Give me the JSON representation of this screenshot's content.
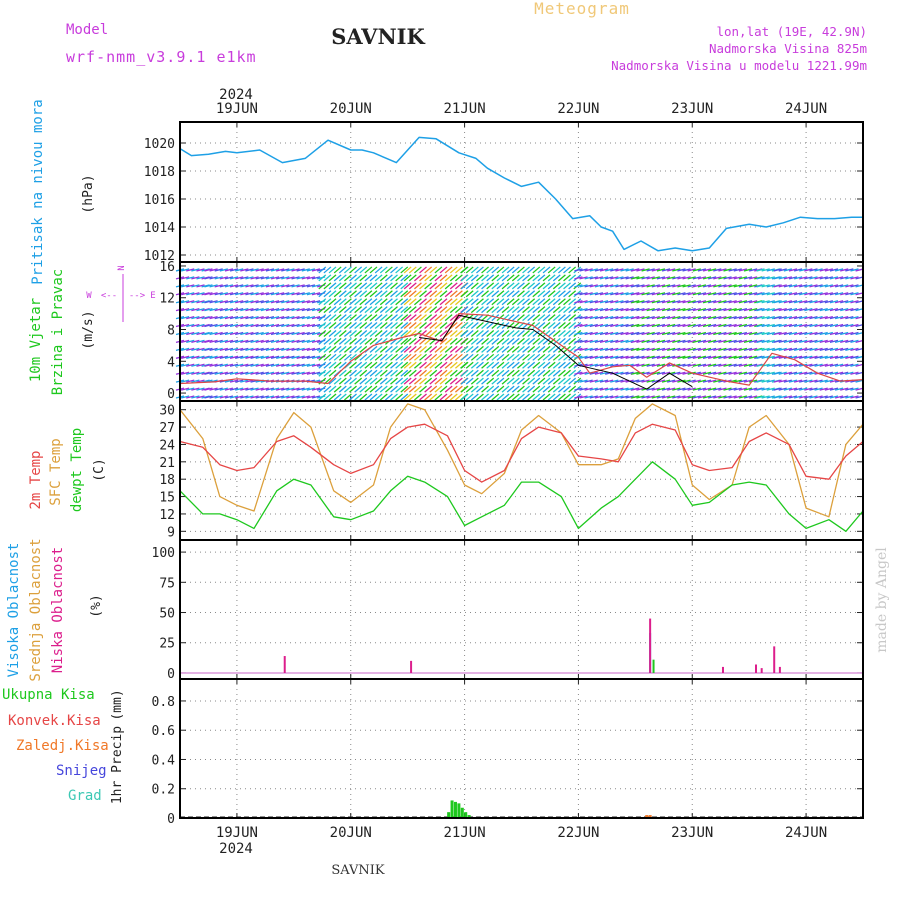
{
  "header": {
    "station_title": "SAVNIK",
    "product_title": "Meteogram",
    "model_label": "Model",
    "model_name": "wrf-nmm_v3.9.1 e1km",
    "location": "lon,lat (19E, 42.9N)",
    "elevation": "Nadmorska Visina 825m",
    "model_elevation": "Nadmorska Visina u modelu 1221.99m",
    "credit": "made by Angel",
    "footer_station": "SAVNIK"
  },
  "time_axis": {
    "year": "2024",
    "day_labels": [
      "19JUN",
      "20JUN",
      "21JUN",
      "22JUN",
      "23JUN",
      "24JUN"
    ],
    "day_values": [
      1,
      2,
      3,
      4,
      5,
      6
    ],
    "range": [
      0.5,
      6.5
    ]
  },
  "colors": {
    "pressure": "#1ea0e6",
    "temp2m": "#e64646",
    "sfc_temp": "#dca03c",
    "dewpoint": "#1ec81e",
    "high_cloud": "#1ea0e6",
    "mid_cloud": "#dca03c",
    "low_cloud": "#dc1e8c",
    "total_precip": "#1ec81e",
    "conv_precip": "#e64646",
    "frozen_precip": "#f07828",
    "snow": "#4646dc",
    "hail": "#3cc8b4",
    "wind_direction_label": "#c83cdc",
    "wind_speed_line": "#dc4646",
    "wind_gust_line": "#000000",
    "credit": "#c8c8c8"
  },
  "chart_data": [
    {
      "type": "line",
      "name": "pressure",
      "ylabel_lines": [
        "Pritisak na nivou mora"
      ],
      "unit": "(hPa)",
      "ylim": [
        1011.5,
        1021.5
      ],
      "yticks": [
        1012,
        1014,
        1016,
        1018,
        1020
      ],
      "x": [
        0.5,
        0.6,
        0.75,
        0.9,
        1.0,
        1.2,
        1.4,
        1.6,
        1.8,
        2.0,
        2.1,
        2.2,
        2.4,
        2.6,
        2.75,
        2.85,
        2.95,
        3.1,
        3.2,
        3.35,
        3.5,
        3.65,
        3.8,
        3.95,
        4.1,
        4.2,
        4.3,
        4.4,
        4.55,
        4.7,
        4.85,
        5.0,
        5.15,
        5.3,
        5.5,
        5.65,
        5.8,
        5.95,
        6.1,
        6.25,
        6.4,
        6.5
      ],
      "y": [
        1019.6,
        1019.1,
        1019.2,
        1019.4,
        1019.3,
        1019.5,
        1018.6,
        1018.9,
        1020.2,
        1019.5,
        1019.5,
        1019.3,
        1018.6,
        1020.4,
        1020.3,
        1019.8,
        1019.3,
        1018.9,
        1018.2,
        1017.5,
        1016.9,
        1017.2,
        1016.0,
        1014.6,
        1014.8,
        1014.0,
        1013.7,
        1012.4,
        1013.0,
        1012.3,
        1012.5,
        1012.3,
        1012.5,
        1013.9,
        1014.2,
        1014.0,
        1014.3,
        1014.7,
        1014.6,
        1014.6,
        1014.7,
        1014.7
      ]
    },
    {
      "type": "line",
      "name": "wind",
      "ylabel_lines": [
        "10m Vjetar",
        "Brzina i Pravac"
      ],
      "unit": "(m/s)",
      "direction_labels": [
        "N",
        "E",
        "W",
        "<--",
        "-->"
      ],
      "ylim": [
        -1,
        16.5
      ],
      "yticks": [
        0,
        4,
        8,
        12,
        16
      ],
      "series": [
        {
          "x": [
            0.5,
            0.8,
            1.0,
            1.3,
            1.6,
            1.8,
            2.0,
            2.2,
            2.45,
            2.6,
            2.8,
            2.95,
            3.2,
            3.45,
            3.6,
            3.8,
            4.0,
            4.1,
            4.3,
            4.45,
            4.6,
            4.8,
            5.0,
            5.3,
            5.5,
            5.7,
            5.9,
            6.1,
            6.3,
            6.5
          ],
          "y": [
            1.2,
            1.4,
            1.8,
            1.5,
            1.5,
            1.2,
            4.0,
            6.0,
            7.0,
            7.5,
            6.5,
            10.0,
            9.8,
            9.0,
            8.5,
            6.5,
            4.5,
            2.5,
            3.3,
            3.5,
            2.0,
            3.8,
            2.5,
            1.5,
            1.0,
            5.0,
            4.2,
            2.5,
            1.5,
            1.7
          ]
        },
        {
          "x": [
            2.6,
            2.8,
            2.95,
            3.2,
            3.45,
            3.6,
            3.8,
            4.0,
            4.3,
            4.6,
            4.8,
            5.0
          ],
          "y": [
            7.0,
            6.6,
            9.8,
            9.0,
            8.2,
            8.0,
            6.0,
            3.5,
            2.5,
            0.5,
            2.5,
            0.8
          ]
        }
      ]
    },
    {
      "type": "line",
      "name": "temperature",
      "ylabel_lines": [
        "2m Temp",
        "SFC Temp",
        "dewpt Temp"
      ],
      "unit": "(C)",
      "ylim": [
        7.5,
        31.5
      ],
      "yticks": [
        9,
        12,
        15,
        18,
        21,
        24,
        27,
        30
      ],
      "series": [
        {
          "x": [
            0.5,
            0.7,
            0.85,
            1.0,
            1.15,
            1.35,
            1.5,
            1.65,
            1.85,
            2.0,
            2.2,
            2.35,
            2.5,
            2.65,
            2.85,
            3.0,
            3.15,
            3.35,
            3.5,
            3.65,
            3.85,
            4.0,
            4.2,
            4.35,
            4.5,
            4.65,
            4.85,
            5.0,
            5.15,
            5.35,
            5.5,
            5.65,
            5.85,
            6.0,
            6.2,
            6.35,
            6.5
          ],
          "y": [
            24.5,
            23.5,
            20.5,
            19.5,
            20.0,
            24.5,
            25.5,
            23.5,
            20.5,
            19.0,
            20.5,
            25.0,
            27.0,
            27.5,
            25.5,
            19.5,
            17.5,
            19.5,
            25.0,
            27.0,
            26.0,
            22.0,
            21.5,
            21.0,
            26.0,
            27.5,
            26.5,
            20.5,
            19.5,
            20.0,
            24.5,
            26.0,
            24.0,
            18.5,
            18.0,
            22.0,
            24.5
          ]
        },
        {
          "x": [
            0.5,
            0.7,
            0.85,
            1.0,
            1.15,
            1.35,
            1.5,
            1.65,
            1.85,
            2.0,
            2.2,
            2.35,
            2.5,
            2.65,
            2.85,
            3.0,
            3.15,
            3.35,
            3.5,
            3.65,
            3.85,
            4.0,
            4.2,
            4.35,
            4.5,
            4.65,
            4.85,
            5.0,
            5.15,
            5.35,
            5.5,
            5.65,
            5.85,
            6.0,
            6.2,
            6.35,
            6.5
          ],
          "y": [
            30.0,
            25.0,
            15.0,
            13.5,
            12.5,
            25.0,
            29.5,
            27.0,
            16.0,
            14.0,
            17.0,
            27.0,
            31.0,
            30.0,
            23.0,
            17.0,
            15.5,
            19.0,
            26.5,
            29.0,
            26.0,
            20.5,
            20.5,
            21.5,
            28.5,
            31.0,
            29.0,
            17.0,
            14.5,
            17.0,
            27.0,
            29.0,
            24.0,
            13.0,
            11.5,
            24.0,
            27.5
          ]
        },
        {
          "x": [
            0.5,
            0.7,
            0.85,
            1.0,
            1.15,
            1.35,
            1.5,
            1.65,
            1.85,
            2.0,
            2.2,
            2.35,
            2.5,
            2.65,
            2.85,
            3.0,
            3.15,
            3.35,
            3.5,
            3.65,
            3.85,
            4.0,
            4.2,
            4.35,
            4.5,
            4.65,
            4.85,
            5.0,
            5.15,
            5.35,
            5.5,
            5.65,
            5.85,
            6.0,
            6.2,
            6.35,
            6.5
          ],
          "y": [
            16.0,
            12.0,
            12.0,
            11.0,
            9.5,
            16.0,
            18.0,
            17.0,
            11.5,
            11.0,
            12.5,
            16.0,
            18.5,
            17.5,
            15.0,
            10.0,
            11.5,
            13.5,
            17.5,
            17.5,
            15.0,
            9.5,
            13.0,
            15.0,
            18.0,
            21.0,
            18.0,
            13.5,
            14.0,
            17.0,
            17.5,
            17.0,
            12.0,
            9.5,
            11.0,
            9.0,
            12.5
          ]
        }
      ]
    },
    {
      "type": "bar",
      "name": "cloud_cover",
      "ylabel_lines": [
        "Visoka Oblacnost",
        "Srednja Oblacnost",
        "Niska Oblacnost"
      ],
      "unit": "(%)",
      "ylim": [
        -5,
        110
      ],
      "yticks": [
        0,
        25,
        50,
        75,
        100
      ],
      "series": [
        {
          "x": [
            4.63
          ],
          "values": [
            33
          ]
        },
        {
          "x": [
            4.66
          ],
          "values": [
            11
          ]
        },
        {
          "x": [
            1.42,
            2.53,
            4.63,
            5.27,
            5.56,
            5.61,
            5.72,
            5.77
          ],
          "values": [
            14,
            10,
            45,
            5,
            7,
            4,
            22,
            5
          ]
        }
      ]
    },
    {
      "type": "bar",
      "name": "precipitation",
      "ylabel_lines": [
        "1hr Precip",
        "(mm)"
      ],
      "legend": [
        "Ukupna Kisa",
        "Konvek.Kisa",
        "Zaledj.Kisa",
        "Snijeg",
        "Grad"
      ],
      "ylim": [
        0,
        0.95
      ],
      "yticks": [
        0,
        0.2,
        0.4,
        0.6,
        0.8
      ],
      "yticklabels": [
        "0",
        "0.2",
        "0.4",
        "0.6",
        "0.8"
      ],
      "series": [
        {
          "x": [
            2.86,
            2.89,
            2.92,
            2.95,
            2.98,
            3.01,
            3.04,
            4.6,
            4.63
          ],
          "values": [
            0.04,
            0.12,
            0.11,
            0.1,
            0.07,
            0.04,
            0.02,
            0.02,
            0.02
          ]
        }
      ]
    }
  ]
}
